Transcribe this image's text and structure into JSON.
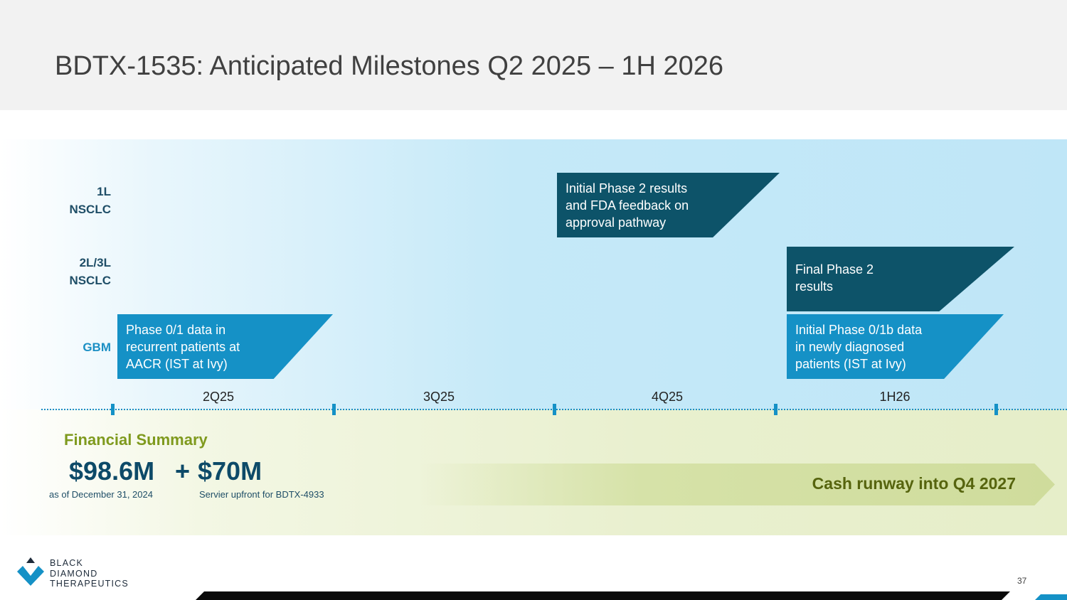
{
  "title": "BDTX-1535: Anticipated Milestones Q2 2025 – 1H 2026",
  "rows": {
    "nsclc_1l": [
      "1L",
      "NSCLC"
    ],
    "nsclc_2l3l": [
      "2L/3L",
      "NSCLC"
    ],
    "gbm": [
      "GBM"
    ]
  },
  "milestones": {
    "initial_phase2": [
      "Initial Phase 2 results",
      "and FDA feedback on",
      "approval pathway"
    ],
    "final_phase2": [
      "Final Phase 2",
      "results"
    ],
    "phase01_gbm": [
      "Phase 0/1 data in",
      "recurrent patients at",
      "AACR (IST at Ivy)"
    ],
    "initial_phase01b": [
      "Initial Phase 0/1b data",
      "in newly diagnosed",
      "patients (IST at Ivy)"
    ]
  },
  "timeline": {
    "quarters": [
      "2Q25",
      "3Q25",
      "4Q25",
      "1H26"
    ]
  },
  "financial": {
    "heading": "Financial Summary",
    "amount1": "$98.6M",
    "plus": "+",
    "amount2": "$70M",
    "note1": "as of December 31, 2024",
    "note2": "Servier upfront for BDTX-4933",
    "runway": "Cash runway into Q4 2027"
  },
  "logo": {
    "lines": [
      "BLACK",
      "DIAMOND",
      "THERAPEUTICS"
    ],
    "colors": {
      "diamond": "#1591c6",
      "triangle": "#1e2b3a"
    }
  },
  "page_number": "37",
  "colors": {
    "navy": "#0d5369",
    "blue": "#1591c6",
    "green_text": "#7f9a1e",
    "title_text": "#404040"
  }
}
